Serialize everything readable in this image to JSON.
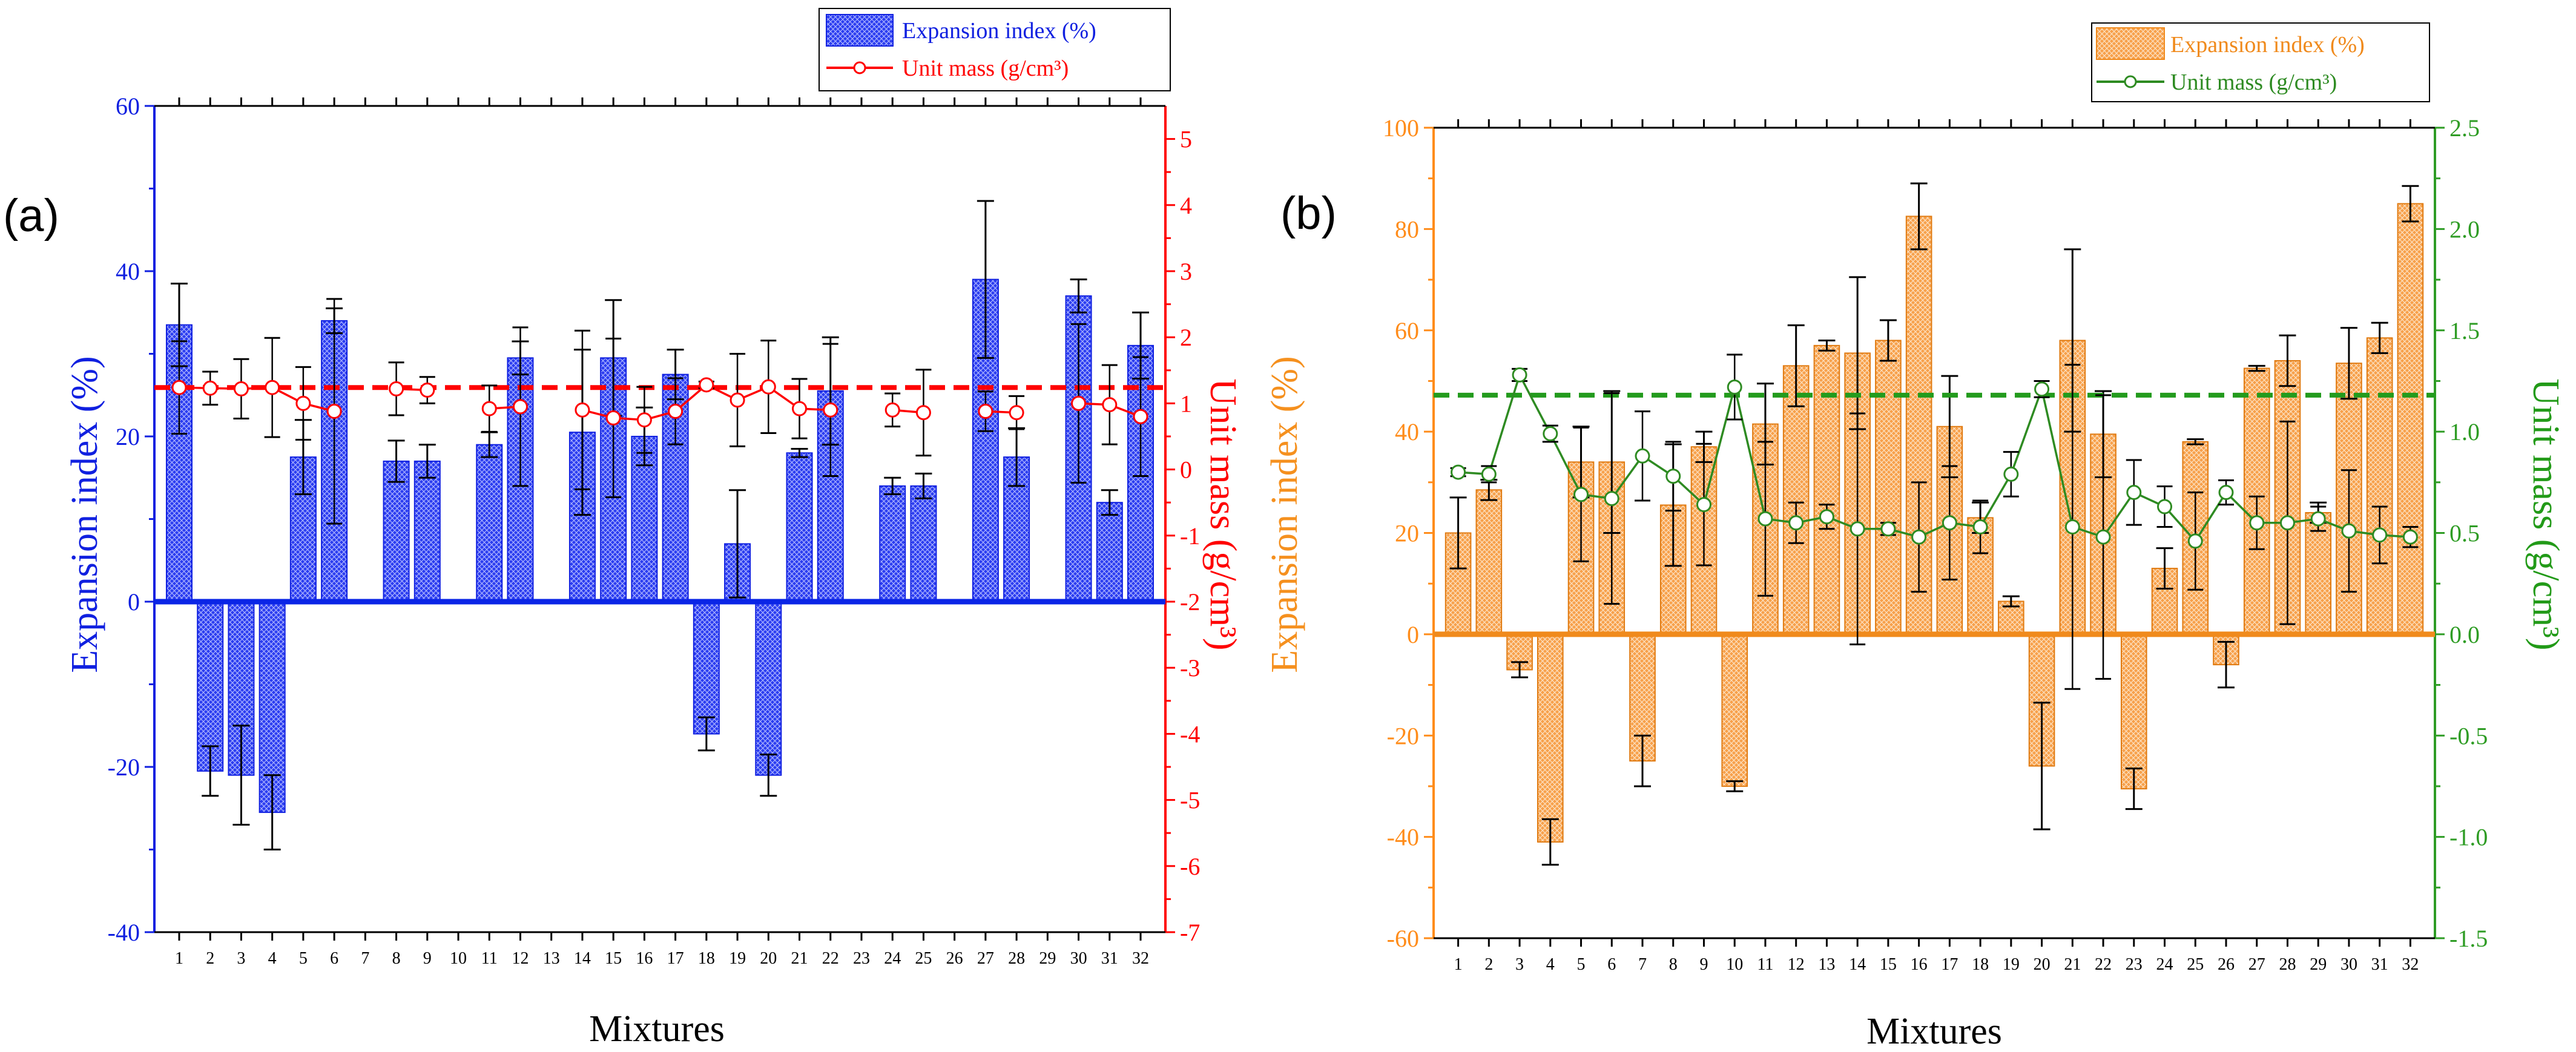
{
  "chart_data": [
    {
      "panel": "(a)",
      "type": "bar+line",
      "categories": [
        "1",
        "2",
        "3",
        "4",
        "5",
        "6",
        "7",
        "8",
        "9",
        "10",
        "11",
        "12",
        "13",
        "14",
        "15",
        "16",
        "17",
        "18",
        "19",
        "20",
        "21",
        "22",
        "23",
        "24",
        "25",
        "26",
        "27",
        "28",
        "29",
        "30",
        "31",
        "32"
      ],
      "series": [
        {
          "name": "Expansion index (%)",
          "kind": "bar",
          "axis": "left",
          "values": [
            33.5,
            -20.5,
            -21,
            -25.5,
            17.5,
            34,
            null,
            17,
            17,
            null,
            19,
            29.5,
            null,
            20.5,
            29.5,
            20,
            27.5,
            -16,
            7,
            -21,
            18,
            25.5,
            null,
            14,
            14,
            null,
            39,
            17.5,
            null,
            37,
            12,
            31
          ],
          "errors": [
            5,
            3,
            6,
            4.5,
            4.5,
            1.5,
            null,
            2.5,
            2,
            null,
            1.5,
            2,
            null,
            10,
            7,
            3.5,
            3,
            2,
            6.5,
            2.5,
            0.5,
            6.5,
            null,
            1,
            1.5,
            null,
            9.5,
            3.5,
            null,
            2,
            1.5,
            4
          ]
        },
        {
          "name": "Unit mass (g/cm³)",
          "kind": "line",
          "axis": "right",
          "values": [
            1.24,
            1.23,
            1.22,
            1.24,
            1.0,
            0.88,
            null,
            1.22,
            1.2,
            null,
            0.92,
            0.95,
            null,
            0.9,
            0.78,
            0.75,
            0.88,
            1.28,
            1.05,
            1.25,
            0.92,
            0.9,
            null,
            0.9,
            0.86,
            null,
            0.88,
            0.86,
            null,
            1.0,
            0.98,
            0.8
          ],
          "errors": [
            0.7,
            0.25,
            0.45,
            0.75,
            0.55,
            1.7,
            null,
            0.4,
            0.2,
            null,
            0.35,
            1.2,
            null,
            1.2,
            1.2,
            0.5,
            0.5,
            0.05,
            0.7,
            0.7,
            0.45,
            1.0,
            null,
            0.25,
            0.65,
            null,
            0.3,
            0.25,
            null,
            1.2,
            0.6,
            0.9
          ]
        }
      ],
      "reference_lines": [
        {
          "axis": "right",
          "value": 1.24
        }
      ],
      "xlabel": "Mixtures",
      "ylabel": "Expansion index (%)",
      "y2label": "Unit mass (g/cm³)",
      "ylim": [
        -40,
        60
      ],
      "y2lim": [
        -7,
        5.5
      ],
      "yticks": [
        -40,
        -20,
        0,
        20,
        40,
        60
      ],
      "y2ticks": [
        -7,
        -6,
        -5,
        -4,
        -3,
        -2,
        -1,
        0,
        1,
        2,
        3,
        4,
        5
      ],
      "colors": {
        "bar": "#2233e8",
        "line": "#ff0000",
        "axis_left": "#1020e0",
        "axis_right": "#ff0000",
        "zero_line": "#0a25e6"
      },
      "legend": "top-center"
    },
    {
      "panel": "(b)",
      "type": "bar+line",
      "categories": [
        "1",
        "2",
        "3",
        "4",
        "5",
        "6",
        "7",
        "8",
        "9",
        "10",
        "11",
        "12",
        "13",
        "14",
        "15",
        "16",
        "17",
        "18",
        "19",
        "20",
        "21",
        "22",
        "23",
        "24",
        "25",
        "26",
        "27",
        "28",
        "29",
        "30",
        "31",
        "32"
      ],
      "series": [
        {
          "name": "Expansion index (%)",
          "kind": "bar",
          "axis": "left",
          "values": [
            20,
            28.5,
            -7,
            -41,
            34,
            34,
            -25,
            25.5,
            37,
            -30,
            41.5,
            53,
            57,
            55.5,
            58,
            82.5,
            41,
            23,
            6.5,
            -26,
            58,
            39.5,
            -30.5,
            13,
            38,
            -6,
            52.5,
            54,
            24,
            53.5,
            58.5,
            85
          ],
          "errors": [
            7,
            2,
            1.5,
            4.5,
            7,
            14,
            5,
            12,
            3,
            1,
            8,
            8,
            1,
            15,
            4,
            6.5,
            10,
            3,
            1,
            12.5,
            18,
            8.5,
            4,
            4,
            0.5,
            4.5,
            0.5,
            5,
            2,
            7,
            3,
            3.5
          ]
        },
        {
          "name": "Unit mass (g/cm³)",
          "kind": "line",
          "axis": "right",
          "values": [
            0.8,
            0.79,
            1.28,
            0.99,
            0.69,
            0.67,
            0.88,
            0.78,
            0.64,
            1.22,
            0.57,
            0.55,
            0.58,
            0.52,
            0.52,
            0.48,
            0.55,
            0.53,
            0.79,
            1.21,
            0.53,
            0.48,
            0.7,
            0.63,
            0.46,
            0.7,
            0.55,
            0.55,
            0.57,
            0.51,
            0.49,
            0.48
          ],
          "errors": [
            0.02,
            0.04,
            0.03,
            0.04,
            0.33,
            0.52,
            0.22,
            0.17,
            0.3,
            0.16,
            0.38,
            0.1,
            0.06,
            0.57,
            0.03,
            0.27,
            0.28,
            0.13,
            0.11,
            0.04,
            0.8,
            0.7,
            0.16,
            0.1,
            0.24,
            0.06,
            0.13,
            0.5,
            0.06,
            0.3,
            0.14,
            0.05
          ]
        }
      ],
      "reference_lines": [
        {
          "axis": "right",
          "value": 1.18
        }
      ],
      "xlabel": "Mixtures",
      "ylabel": "Expansion index (%)",
      "y2label": "Unit mass (g/cm³)",
      "ylim": [
        -60,
        100
      ],
      "y2lim": [
        -1.5,
        2.5
      ],
      "yticks": [
        -60,
        -40,
        -20,
        0,
        20,
        40,
        60,
        80,
        100
      ],
      "y2ticks": [
        -1.5,
        -1.0,
        -0.5,
        0.0,
        0.5,
        1.0,
        1.5,
        2.0,
        2.5
      ],
      "y2tick_labels": [
        "-1.5",
        "-1.0",
        "-0.5",
        "0.0",
        "0.5",
        "1.0",
        "1.5",
        "2.0",
        "2.5"
      ],
      "colors": {
        "bar": "#f4942f",
        "line": "#2e8b22",
        "axis_left": "#ff8c1a",
        "axis_right": "#2e9c24",
        "zero_line": "#f08a1c",
        "ref_line": "#239b1d"
      },
      "legend": "top-right"
    }
  ]
}
